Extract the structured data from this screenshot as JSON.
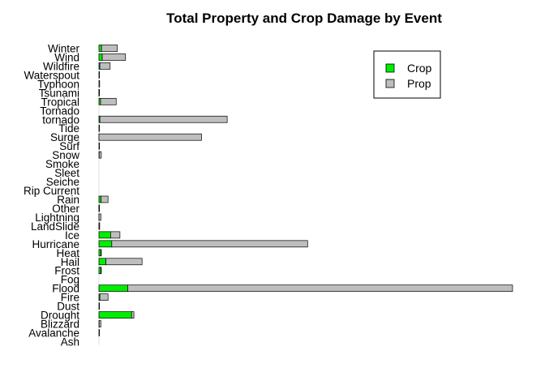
{
  "chart_data": {
    "type": "bar",
    "orientation": "horizontal",
    "stacked": true,
    "title": "Total Property and Crop Damage by Event",
    "xlabel": "",
    "ylabel": "",
    "categories": [
      "Ash",
      "Avalanche",
      "Blizzard",
      "Drought",
      "Dust",
      "Fire",
      "Flood",
      "Fog",
      "Frost",
      "Hail",
      "Heat",
      "Hurricane",
      "Ice",
      "LandSlide",
      "Lightning",
      "Other",
      "Rain",
      "Rip Current",
      "Seiche",
      "Sleet",
      "Smoke",
      "Snow",
      "Surf",
      "Surge",
      "Tide",
      "tornado",
      "Tornado",
      "Tropical",
      "Tsunami",
      "Typhoon",
      "Waterspout",
      "Wildfire",
      "Wind",
      "Winter"
    ],
    "series": [
      {
        "name": "Crop",
        "color": "#00ee00",
        "values": [
          0,
          0,
          0.1,
          14.0,
          0,
          0.4,
          12.4,
          0,
          0.8,
          3.0,
          0.8,
          5.5,
          5.0,
          0.02,
          0.01,
          0.02,
          0.9,
          0,
          0,
          0,
          0,
          0.1,
          0,
          0.001,
          0,
          0.4,
          0,
          0.7,
          0.001,
          0,
          0,
          0.4,
          1.4,
          1.1
        ]
      },
      {
        "name": "Prop",
        "color": "#bebebe",
        "values": [
          0,
          0.01,
          0.7,
          1.0,
          0.01,
          3.5,
          165.0,
          0,
          0.05,
          15.5,
          0.05,
          84.0,
          4.0,
          0.3,
          0.8,
          0.1,
          3.0,
          0,
          0,
          0,
          0,
          0.9,
          0.1,
          44.0,
          0.1,
          54.6,
          0,
          6.7,
          0.15,
          0.3,
          0.01,
          4.4,
          10.0,
          6.8
        ]
      }
    ],
    "legend": {
      "position": "top-right",
      "entries": [
        "Crop",
        "Prop"
      ]
    },
    "grid": false
  }
}
